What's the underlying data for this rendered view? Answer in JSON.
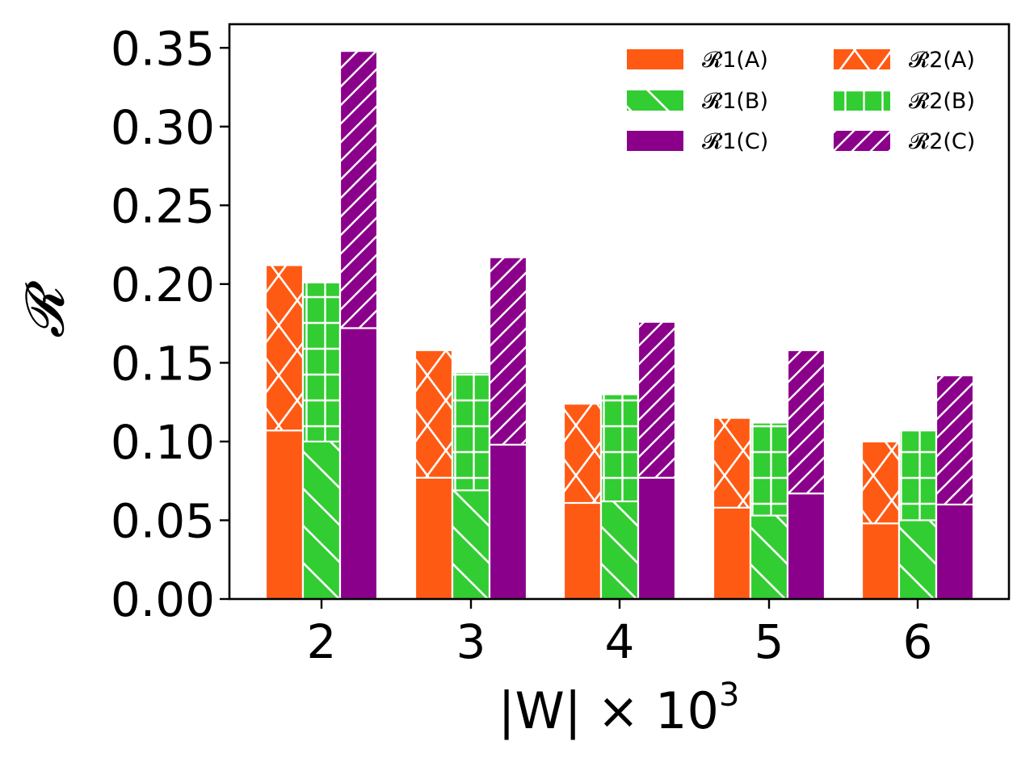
{
  "chart_data": {
    "type": "bar",
    "xlabel": "|W| × 10",
    "xlabel_exponent": "3",
    "ylabel": "𝓡",
    "categories": [
      "2",
      "3",
      "4",
      "5",
      "6"
    ],
    "ylim": [
      0,
      0.365
    ],
    "yticks": [
      "0.00",
      "0.05",
      "0.10",
      "0.15",
      "0.20",
      "0.25",
      "0.30",
      "0.35"
    ],
    "ytick_values": [
      0,
      0.05,
      0.1,
      0.15,
      0.2,
      0.25,
      0.3,
      0.35
    ],
    "grid": false,
    "legend_position": "top-right",
    "series": [
      {
        "name": "𝓡1(A)",
        "group": "A",
        "metric": "R1",
        "color": "#ff5a14",
        "hatch": "none",
        "values": [
          0.107,
          0.077,
          0.061,
          0.058,
          0.048
        ]
      },
      {
        "name": "𝓡2(A)",
        "group": "A",
        "metric": "R2",
        "color": "#ff5a14",
        "hatch": "cross",
        "values": [
          0.212,
          0.158,
          0.124,
          0.115,
          0.1
        ]
      },
      {
        "name": "𝓡1(B)",
        "group": "B",
        "metric": "R1",
        "color": "#32cd32",
        "hatch": "backslash",
        "values": [
          0.1,
          0.069,
          0.062,
          0.053,
          0.05
        ]
      },
      {
        "name": "𝓡2(B)",
        "group": "B",
        "metric": "R2",
        "color": "#32cd32",
        "hatch": "plus",
        "values": [
          0.201,
          0.144,
          0.13,
          0.112,
          0.107
        ]
      },
      {
        "name": "𝓡1(C)",
        "group": "C",
        "metric": "R1",
        "color": "#8b008b",
        "hatch": "none",
        "values": [
          0.172,
          0.098,
          0.077,
          0.067,
          0.06
        ]
      },
      {
        "name": "𝓡2(C)",
        "group": "C",
        "metric": "R2",
        "color": "#8b008b",
        "hatch": "slash",
        "values": [
          0.348,
          0.217,
          0.176,
          0.158,
          0.142
        ]
      }
    ],
    "legend": {
      "col1": [
        "𝓡1(A)",
        "𝓡1(B)",
        "𝓡1(C)"
      ],
      "col2": [
        "𝓡2(A)",
        "𝓡2(B)",
        "𝓡2(C)"
      ]
    }
  }
}
